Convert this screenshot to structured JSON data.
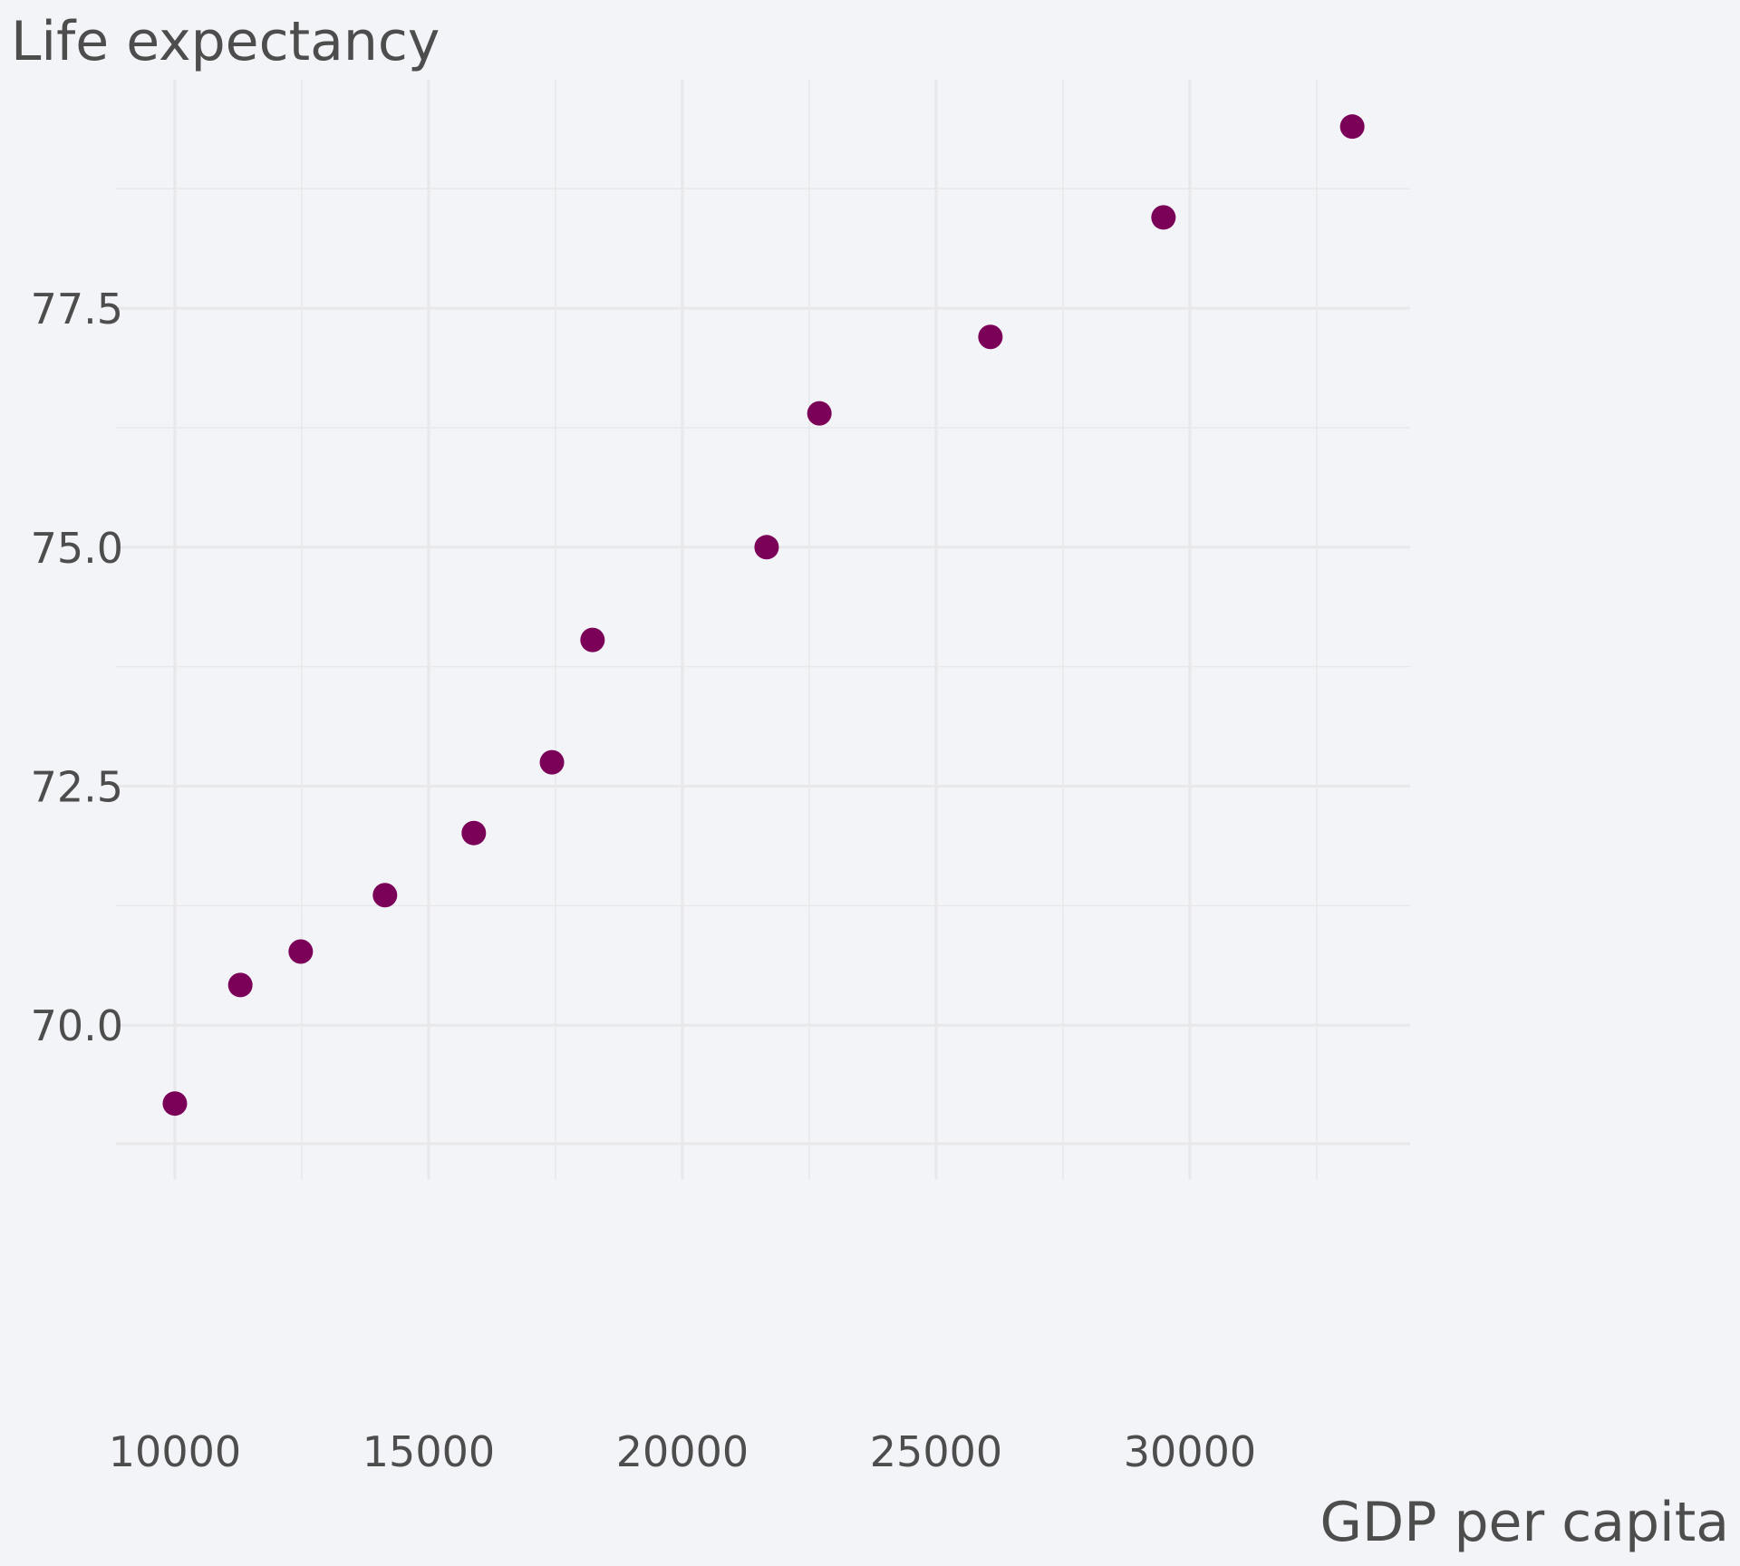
{
  "chart_data": {
    "type": "scatter",
    "title": "",
    "ylabel": "Life expectancy",
    "xlabel": "GDP per capita",
    "x": [
      10000,
      11290,
      12480,
      14140,
      15890,
      17430,
      18230,
      21660,
      22700,
      26070,
      29480,
      33200
    ],
    "y": [
      69.18,
      70.42,
      70.77,
      71.36,
      72.01,
      72.75,
      74.03,
      75.0,
      76.4,
      77.2,
      78.45,
      79.4
    ],
    "xlim": [
      8840,
      34340
    ],
    "ylim": [
      68.76,
      79.89
    ],
    "x_ticks": [
      10000,
      15000,
      20000,
      25000,
      30000
    ],
    "x_tick_labels": [
      "10000",
      "15000",
      "20000",
      "25000",
      "30000"
    ],
    "x_minor_ticks": [
      12500,
      17500,
      22500,
      27500,
      32500
    ],
    "y_ticks": [
      70.0,
      72.5,
      75.0,
      77.5
    ],
    "y_tick_labels": [
      "70.0",
      "72.5",
      "75.0",
      "77.5"
    ],
    "y_minor_ticks": [
      71.25,
      73.75,
      76.25,
      78.75
    ],
    "grid": true,
    "legend": "none",
    "point_color": "#7b0058",
    "background_color": "#f3f4f8",
    "grid_color": "#e8e8ea"
  }
}
